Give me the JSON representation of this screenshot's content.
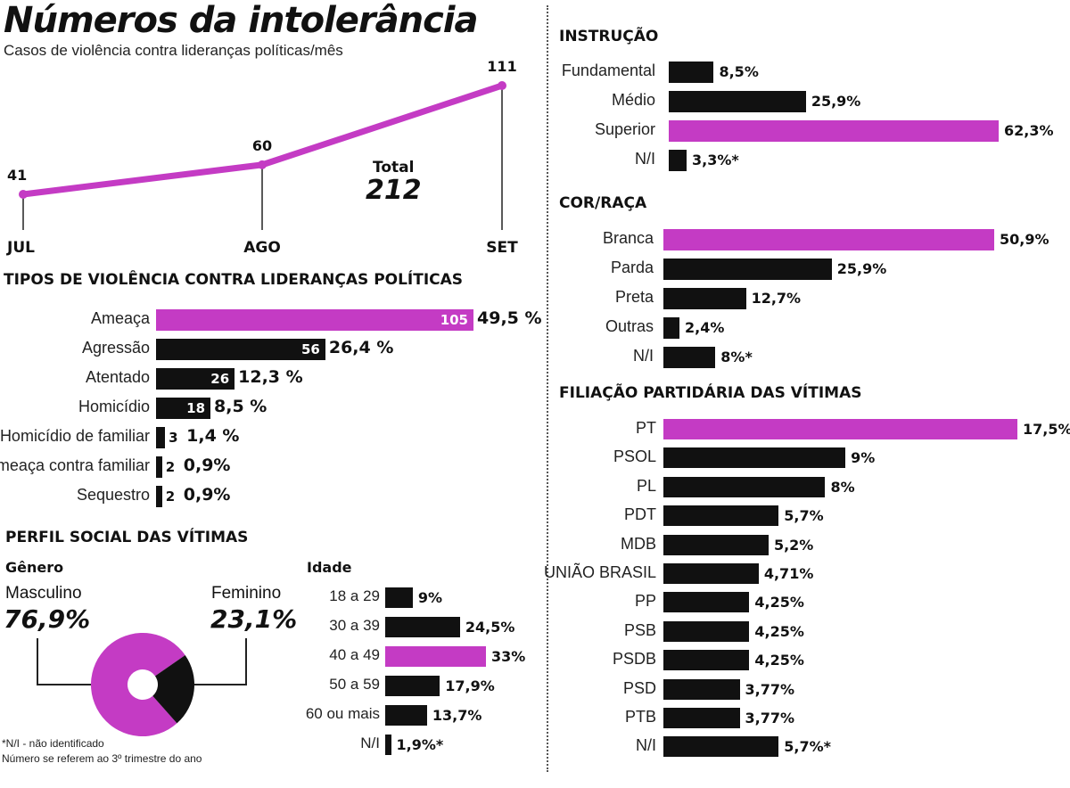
{
  "title": "Números da intolerância",
  "subtitle": "Casos de violência contra lideranças políticas/mês",
  "colors": {
    "highlight": "#c43bc4",
    "bar": "#111111"
  },
  "monthly": {
    "total_label": "Total",
    "total_value": "212"
  },
  "tipos": {
    "heading": "TIPOS DE VIOLÊNCIA CONTRA LIDERANÇAS POLÍTICAS"
  },
  "perfil": {
    "heading": "PERFIL SOCIAL DAS VÍTIMAS",
    "genero_heading": "Gênero",
    "masc_label": "Masculino",
    "masc_value": "76,9%",
    "fem_label": "Feminino",
    "fem_value": "23,1%",
    "idade_heading": "Idade"
  },
  "instrucao": {
    "heading": "INSTRUÇÃO"
  },
  "cor": {
    "heading": "COR/RAÇA"
  },
  "filiacao": {
    "heading": "FILIAÇÃO PARTIDÁRIA DAS VÍTIMAS"
  },
  "footnote": {
    "line1": "*N/I - não identificado",
    "line2": "Número se referem ao 3º trimestre do ano"
  },
  "chart_data": [
    {
      "id": "monthly",
      "type": "line",
      "x": [
        "JUL",
        "AGO",
        "SET"
      ],
      "values": [
        41,
        60,
        111
      ],
      "value_labels": [
        "41",
        "60",
        "111"
      ]
    },
    {
      "id": "tipos",
      "type": "bar",
      "orientation": "horizontal",
      "categories": [
        "Ameaça",
        "Agressão",
        "Atentado",
        "Homicídio",
        "Homicídio de familiar",
        "Ameaça contra familiar",
        "Sequestro"
      ],
      "counts": [
        105,
        56,
        26,
        18,
        3,
        2,
        2
      ],
      "count_labels": [
        "105",
        "56",
        "26",
        "18",
        "3",
        "2",
        "2"
      ],
      "percent_labels": [
        "49,5 %",
        "26,4 %",
        "12,3 %",
        "8,5 %",
        "1,4 %",
        "0,9%",
        "0,9%"
      ],
      "highlight_index": 0
    },
    {
      "id": "genero",
      "type": "pie",
      "labels": [
        "Masculino",
        "Feminino"
      ],
      "values": [
        76.9,
        23.1
      ]
    },
    {
      "id": "idade",
      "type": "bar",
      "orientation": "horizontal",
      "categories": [
        "18 a 29",
        "30 a 39",
        "40 a 49",
        "50 a 59",
        "60 ou mais",
        "N/I"
      ],
      "values": [
        9,
        24.5,
        33,
        17.9,
        13.7,
        1.9
      ],
      "value_labels": [
        "9%",
        "24,5%",
        "33%",
        "17,9%",
        "13,7%",
        "1,9%*"
      ],
      "highlight_index": 2
    },
    {
      "id": "instrucao",
      "type": "bar",
      "orientation": "horizontal",
      "categories": [
        "Fundamental",
        "Médio",
        "Superior",
        "N/I"
      ],
      "values": [
        8.5,
        25.9,
        62.3,
        3.3
      ],
      "value_labels": [
        "8,5%",
        "25,9%",
        "62,3%",
        "3,3%*"
      ],
      "highlight_index": 2
    },
    {
      "id": "cor",
      "type": "bar",
      "orientation": "horizontal",
      "categories": [
        "Branca",
        "Parda",
        "Preta",
        "Outras",
        "N/I"
      ],
      "values": [
        50.9,
        25.9,
        12.7,
        2.4,
        8
      ],
      "value_labels": [
        "50,9%",
        "25,9%",
        "12,7%",
        "2,4%",
        "8%*"
      ],
      "highlight_index": 0
    },
    {
      "id": "filiacao",
      "type": "bar",
      "orientation": "horizontal",
      "categories": [
        "PT",
        "PSOL",
        "PL",
        "PDT",
        "MDB",
        "UNIÃO BRASIL",
        "PP",
        "PSB",
        "PSDB",
        "PSD",
        "PTB",
        "N/I"
      ],
      "values": [
        17.5,
        9,
        8,
        5.7,
        5.2,
        4.71,
        4.25,
        4.25,
        4.25,
        3.77,
        3.77,
        5.7
      ],
      "value_labels": [
        "17,5%",
        "9%",
        "8%",
        "5,7%",
        "5,2%",
        "4,71%",
        "4,25%",
        "4,25%",
        "4,25%",
        "3,77%",
        "3,77%",
        "5,7%*"
      ],
      "highlight_index": 0
    }
  ]
}
